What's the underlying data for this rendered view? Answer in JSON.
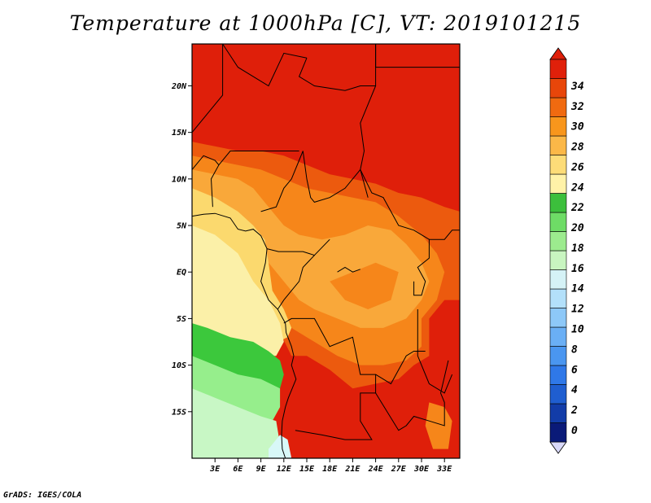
{
  "title": "Temperature at 1000hPa [C], VT: 2019101215",
  "credit": "GrADS: IGES/COLA",
  "map": {
    "lon_range": [
      0,
      35
    ],
    "lat_range": [
      -20,
      24.5
    ],
    "lat_labels": [
      "20N",
      "15N",
      "10N",
      "5N",
      "EQ",
      "5S",
      "10S",
      "15S"
    ],
    "lat_values": [
      20,
      15,
      10,
      5,
      0,
      -5,
      -10,
      -15
    ],
    "lon_labels": [
      "3E",
      "6E",
      "9E",
      "12E",
      "15E",
      "18E",
      "21E",
      "24E",
      "27E",
      "30E",
      "33E"
    ],
    "lon_values": [
      3,
      6,
      9,
      12,
      15,
      18,
      21,
      24,
      27,
      30,
      33
    ]
  },
  "colorbar": {
    "labels": [
      "0",
      "2",
      "4",
      "6",
      "8",
      "10",
      "12",
      "14",
      "16",
      "18",
      "20",
      "22",
      "24",
      "26",
      "28",
      "30",
      "32",
      "34"
    ],
    "colors": [
      "#0a1a78",
      "#123ca8",
      "#1f5ed0",
      "#2f78e8",
      "#4a96f0",
      "#6aaff5",
      "#8dc8f8",
      "#b3e0fa",
      "#d5f2f6",
      "#c8f5c0",
      "#9ceb8e",
      "#6edc66",
      "#3cbf3c",
      "#fff2a8",
      "#fddc78",
      "#fbb848",
      "#f8961c",
      "#f06a10",
      "#e8460a",
      "#e0200a"
    ]
  },
  "colors": {
    "ocean_light": "#c8f7c5",
    "ocean_mid": "#96ee8c",
    "ocean_green": "#3cc83c",
    "sea_yellow": "#fbf0a8",
    "sea_gold": "#fbd96e",
    "orange_light": "#f9a83a",
    "orange": "#f6861a",
    "orange_red": "#ec5a0e",
    "red": "#df1f0a",
    "ice": "#d8f8f8"
  }
}
